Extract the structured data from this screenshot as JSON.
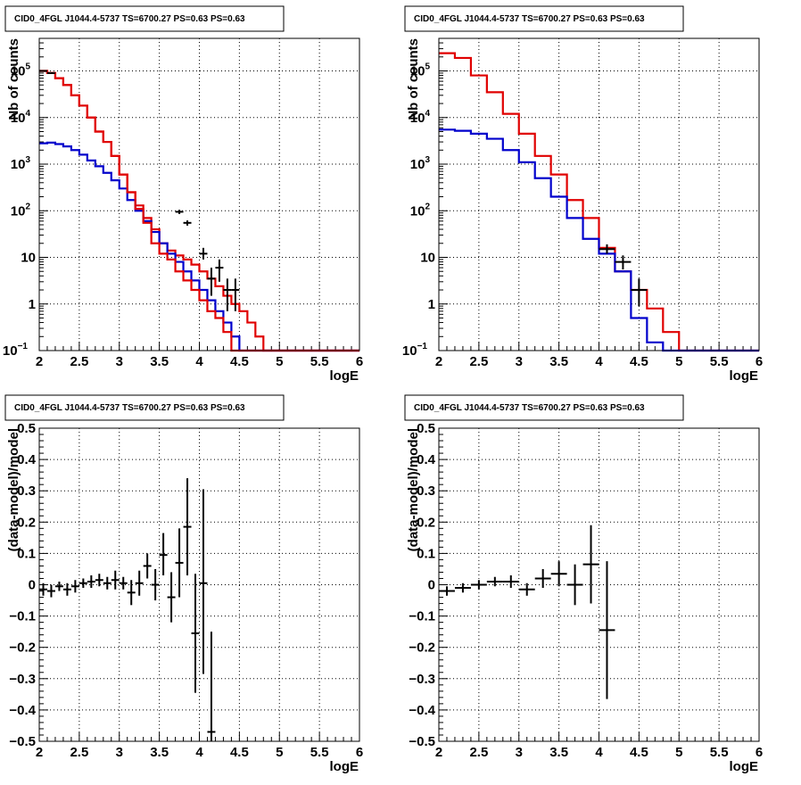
{
  "chart_data": [
    {
      "id": "p1",
      "type": "line",
      "title": "CID0_4FGL J1044.4-5737 TS=6700.27 PS=0.63 PS=0.63",
      "xlabel": "logE",
      "ylabel": "Nb of counts",
      "xlim": [
        2,
        6
      ],
      "ylim": [
        0.1,
        500000
      ],
      "yscale": "log",
      "grid": true,
      "xticks": [
        "2",
        "2.5",
        "3",
        "3.5",
        "4",
        "4.5",
        "5",
        "5.5",
        "6"
      ],
      "yticks": [
        {
          "v": 0.1,
          "l": "10",
          "sup": "−1"
        },
        {
          "v": 1,
          "l": "1"
        },
        {
          "v": 10,
          "l": "10"
        },
        {
          "v": 100,
          "l": "10",
          "sup": "2"
        },
        {
          "v": 1000,
          "l": "10",
          "sup": "3"
        },
        {
          "v": 10000,
          "l": "10",
          "sup": "4"
        },
        {
          "v": 100000,
          "l": "10",
          "sup": "5"
        }
      ],
      "series": [
        {
          "color": "#e00000",
          "edges": [
            2.0,
            2.1,
            2.2,
            2.3,
            2.4,
            2.5,
            2.6,
            2.7,
            2.8,
            2.9,
            3.0,
            3.1,
            3.2,
            3.3,
            3.4,
            3.5,
            3.6,
            3.7,
            3.8,
            3.9,
            4.0,
            4.1,
            4.2,
            4.3,
            4.4,
            4.5,
            4.6,
            4.7,
            4.8,
            4.9,
            5.0,
            6.0
          ],
          "values": [
            100000,
            90000,
            70000,
            50000,
            30000,
            18000,
            10000,
            5000,
            3000,
            1500,
            600,
            250,
            130,
            70,
            40,
            20,
            14,
            11,
            9,
            7,
            5,
            3.5,
            2.4,
            1.5,
            1.0,
            0.7,
            0.4,
            0.2,
            0.1,
            0.1,
            0.1
          ]
        },
        {
          "color": "#0000cc",
          "edges": [
            2.0,
            2.1,
            2.2,
            2.3,
            2.4,
            2.5,
            2.6,
            2.7,
            2.8,
            2.9,
            3.0,
            3.1,
            3.2,
            3.3,
            3.4,
            3.5,
            3.6,
            3.7,
            3.8,
            3.9,
            4.0,
            4.1,
            4.2,
            4.3,
            4.4,
            4.5,
            4.6,
            4.7,
            4.8,
            4.9,
            5.0,
            6.0
          ],
          "values": [
            2800,
            2900,
            2700,
            2400,
            2000,
            1600,
            1200,
            900,
            650,
            450,
            300,
            170,
            100,
            60,
            35,
            20,
            12,
            8,
            5,
            3.2,
            2.0,
            1.2,
            0.7,
            0.4,
            0.2,
            0.1,
            0.1,
            0.1,
            0.1,
            0.1,
            0.1
          ]
        },
        {
          "color": "#e00000",
          "edges": [
            2.0,
            2.1,
            2.2,
            2.3,
            2.4,
            2.5,
            2.6,
            2.7,
            2.8,
            2.9,
            3.0,
            3.1,
            3.2,
            3.3,
            3.4,
            3.5,
            3.6,
            3.7,
            3.8,
            3.9,
            4.0,
            4.1,
            4.2,
            4.3,
            4.4,
            4.5,
            4.6,
            4.7,
            4.8,
            4.9,
            5.0,
            6.0
          ],
          "values": [
            100000,
            90000,
            70000,
            50000,
            30000,
            18000,
            10000,
            5000,
            3000,
            1500,
            600,
            250,
            110,
            55,
            20,
            12,
            9,
            5,
            3.2,
            2.0,
            1.2,
            0.7,
            0.5,
            0.25,
            0.1,
            0.1,
            0.1,
            0.1,
            0.1,
            0.1,
            0.1
          ]
        }
      ],
      "points": [
        {
          "x": 2.05,
          "y": 100000,
          "xe": 0.05,
          "lo": 99000,
          "hi": 101000
        },
        {
          "x": 2.15,
          "y": 90000,
          "xe": 0.05,
          "lo": 89000,
          "hi": 91000
        },
        {
          "x": 3.85,
          "y": 55,
          "xe": 0.05,
          "lo": 48,
          "hi": 62
        },
        {
          "x": 3.75,
          "y": 95,
          "xe": 0.05,
          "lo": 85,
          "hi": 105
        },
        {
          "x": 4.05,
          "y": 12,
          "xe": 0.05,
          "lo": 9,
          "hi": 16
        },
        {
          "x": 4.15,
          "y": 3.5,
          "xe": 0.05,
          "lo": 1.5,
          "hi": 6
        },
        {
          "x": 4.25,
          "y": 6,
          "xe": 0.05,
          "lo": 3,
          "hi": 9
        },
        {
          "x": 4.35,
          "y": 2,
          "xe": 0.05,
          "lo": 0.7,
          "hi": 3.5
        },
        {
          "x": 4.45,
          "y": 2,
          "xe": 0.05,
          "lo": 0.7,
          "hi": 3.5
        }
      ]
    },
    {
      "id": "p2",
      "type": "line",
      "title": "CID0_4FGL J1044.4-5737 TS=6700.27 PS=0.63 PS=0.63",
      "xlabel": "logE",
      "ylabel": "Nb of counts",
      "xlim": [
        2,
        6
      ],
      "ylim": [
        0.1,
        500000
      ],
      "yscale": "log",
      "grid": true,
      "xticks": [
        "2",
        "2.5",
        "3",
        "3.5",
        "4",
        "4.5",
        "5",
        "5.5",
        "6"
      ],
      "yticks": [
        {
          "v": 0.1,
          "l": "10",
          "sup": "−1"
        },
        {
          "v": 1,
          "l": "1"
        },
        {
          "v": 10,
          "l": "10"
        },
        {
          "v": 100,
          "l": "10",
          "sup": "2"
        },
        {
          "v": 1000,
          "l": "10",
          "sup": "3"
        },
        {
          "v": 10000,
          "l": "10",
          "sup": "4"
        },
        {
          "v": 100000,
          "l": "10",
          "sup": "5"
        }
      ],
      "series": [
        {
          "color": "#e00000",
          "edges": [
            2.0,
            2.2,
            2.4,
            2.6,
            2.8,
            3.0,
            3.2,
            3.4,
            3.6,
            3.8,
            4.0,
            4.2,
            4.4,
            4.6,
            4.8,
            5.0,
            6.0
          ],
          "values": [
            240000,
            190000,
            80000,
            35000,
            12000,
            4500,
            1500,
            600,
            170,
            70,
            16,
            5,
            2,
            0.8,
            0.25,
            0.1
          ]
        },
        {
          "color": "#0000cc",
          "edges": [
            2.0,
            2.2,
            2.4,
            2.6,
            2.8,
            3.0,
            3.2,
            3.4,
            3.6,
            3.8,
            4.0,
            4.2,
            4.4,
            4.6,
            4.8,
            5.0,
            6.0
          ],
          "values": [
            5500,
            5200,
            4500,
            3500,
            2000,
            1100,
            500,
            200,
            70,
            25,
            12,
            5,
            0.5,
            0.15,
            0.1,
            0.1
          ]
        }
      ],
      "points": [
        {
          "x": 4.1,
          "y": 15,
          "xe": 0.1,
          "lo": 12,
          "hi": 19
        },
        {
          "x": 4.3,
          "y": 8,
          "xe": 0.1,
          "lo": 5.5,
          "hi": 11
        },
        {
          "x": 4.5,
          "y": 2,
          "xe": 0.1,
          "lo": 0.9,
          "hi": 3.5
        }
      ]
    },
    {
      "id": "p3",
      "type": "scatter",
      "title": "CID0_4FGL J1044.4-5737 TS=6700.27 PS=0.63 PS=0.63",
      "xlabel": "logE",
      "ylabel": "(data-model)/model",
      "xlim": [
        2,
        6
      ],
      "ylim": [
        -0.5,
        0.5
      ],
      "yscale": "linear",
      "grid": true,
      "xticks": [
        "2",
        "2.5",
        "3",
        "3.5",
        "4",
        "4.5",
        "5",
        "5.5",
        "6"
      ],
      "yticks": [
        {
          "v": -0.5,
          "l": "−0.5"
        },
        {
          "v": -0.4,
          "l": "−0.4"
        },
        {
          "v": -0.3,
          "l": "−0.3"
        },
        {
          "v": -0.2,
          "l": "−0.2"
        },
        {
          "v": -0.1,
          "l": "−0.1"
        },
        {
          "v": 0,
          "l": "0"
        },
        {
          "v": 0.1,
          "l": "0.1"
        },
        {
          "v": 0.2,
          "l": "0.2"
        },
        {
          "v": 0.3,
          "l": "0.3"
        },
        {
          "v": 0.4,
          "l": "0.4"
        },
        {
          "v": 0.5,
          "l": "0.5"
        }
      ],
      "series": [],
      "points": [
        {
          "x": 2.05,
          "y": -0.015,
          "xe": 0.05,
          "lo": -0.035,
          "hi": 0.005
        },
        {
          "x": 2.15,
          "y": -0.02,
          "xe": 0.05,
          "lo": -0.04,
          "hi": 0.0
        },
        {
          "x": 2.25,
          "y": -0.005,
          "xe": 0.05,
          "lo": -0.02,
          "hi": 0.01
        },
        {
          "x": 2.35,
          "y": -0.015,
          "xe": 0.05,
          "lo": -0.035,
          "hi": 0.005
        },
        {
          "x": 2.45,
          "y": -0.005,
          "xe": 0.05,
          "lo": -0.025,
          "hi": 0.015
        },
        {
          "x": 2.55,
          "y": 0.005,
          "xe": 0.05,
          "lo": -0.01,
          "hi": 0.02
        },
        {
          "x": 2.65,
          "y": 0.01,
          "xe": 0.05,
          "lo": -0.01,
          "hi": 0.03
        },
        {
          "x": 2.75,
          "y": 0.015,
          "xe": 0.05,
          "lo": -0.005,
          "hi": 0.035
        },
        {
          "x": 2.85,
          "y": 0.005,
          "xe": 0.05,
          "lo": -0.015,
          "hi": 0.025
        },
        {
          "x": 2.95,
          "y": 0.015,
          "xe": 0.05,
          "lo": -0.015,
          "hi": 0.045
        },
        {
          "x": 3.05,
          "y": 0.005,
          "xe": 0.05,
          "lo": -0.015,
          "hi": 0.025
        },
        {
          "x": 3.15,
          "y": -0.025,
          "xe": 0.05,
          "lo": -0.065,
          "hi": 0.015
        },
        {
          "x": 3.25,
          "y": 0.005,
          "xe": 0.05,
          "lo": -0.035,
          "hi": 0.045
        },
        {
          "x": 3.35,
          "y": 0.06,
          "xe": 0.05,
          "lo": 0.02,
          "hi": 0.1
        },
        {
          "x": 3.45,
          "y": 0.0,
          "xe": 0.05,
          "lo": -0.05,
          "hi": 0.05
        },
        {
          "x": 3.55,
          "y": 0.095,
          "xe": 0.05,
          "lo": 0.03,
          "hi": 0.165
        },
        {
          "x": 3.65,
          "y": -0.04,
          "xe": 0.05,
          "lo": -0.12,
          "hi": 0.04
        },
        {
          "x": 3.75,
          "y": 0.07,
          "xe": 0.05,
          "lo": -0.04,
          "hi": 0.18
        },
        {
          "x": 3.85,
          "y": 0.185,
          "xe": 0.05,
          "lo": 0.03,
          "hi": 0.34
        },
        {
          "x": 3.95,
          "y": -0.155,
          "xe": 0.05,
          "lo": -0.345,
          "hi": 0.035
        },
        {
          "x": 4.05,
          "y": 0.005,
          "xe": 0.05,
          "lo": -0.285,
          "hi": 0.305
        },
        {
          "x": 4.15,
          "y": -0.47,
          "xe": 0.05,
          "lo": -0.5,
          "hi": -0.15
        }
      ]
    },
    {
      "id": "p4",
      "type": "scatter",
      "title": "CID0_4FGL J1044.4-5737 TS=6700.27 PS=0.63 PS=0.63",
      "xlabel": "logE",
      "ylabel": "(data-model)/model",
      "xlim": [
        2,
        6
      ],
      "ylim": [
        -0.5,
        0.5
      ],
      "yscale": "linear",
      "grid": true,
      "xticks": [
        "2",
        "2.5",
        "3",
        "3.5",
        "4",
        "4.5",
        "5",
        "5.5",
        "6"
      ],
      "yticks": [
        {
          "v": -0.5,
          "l": "−0.5"
        },
        {
          "v": -0.4,
          "l": "−0.4"
        },
        {
          "v": -0.3,
          "l": "−0.3"
        },
        {
          "v": -0.2,
          "l": "−0.2"
        },
        {
          "v": -0.1,
          "l": "−0.1"
        },
        {
          "v": 0,
          "l": "0"
        },
        {
          "v": 0.1,
          "l": "0.1"
        },
        {
          "v": 0.2,
          "l": "0.2"
        },
        {
          "v": 0.3,
          "l": "0.3"
        },
        {
          "v": 0.4,
          "l": "0.4"
        },
        {
          "v": 0.5,
          "l": "0.5"
        }
      ],
      "series": [],
      "points": [
        {
          "x": 2.1,
          "y": -0.02,
          "xe": 0.1,
          "lo": -0.035,
          "hi": -0.005
        },
        {
          "x": 2.3,
          "y": -0.01,
          "xe": 0.1,
          "lo": -0.025,
          "hi": 0.005
        },
        {
          "x": 2.5,
          "y": 0.0,
          "xe": 0.1,
          "lo": -0.015,
          "hi": 0.015
        },
        {
          "x": 2.7,
          "y": 0.01,
          "xe": 0.1,
          "lo": -0.005,
          "hi": 0.025
        },
        {
          "x": 2.9,
          "y": 0.01,
          "xe": 0.1,
          "lo": -0.01,
          "hi": 0.03
        },
        {
          "x": 3.1,
          "y": -0.015,
          "xe": 0.1,
          "lo": -0.035,
          "hi": 0.005
        },
        {
          "x": 3.3,
          "y": 0.02,
          "xe": 0.1,
          "lo": -0.01,
          "hi": 0.05
        },
        {
          "x": 3.5,
          "y": 0.035,
          "xe": 0.1,
          "lo": -0.005,
          "hi": 0.075
        },
        {
          "x": 3.7,
          "y": 0.0,
          "xe": 0.1,
          "lo": -0.065,
          "hi": 0.065
        },
        {
          "x": 3.9,
          "y": 0.065,
          "xe": 0.1,
          "lo": -0.06,
          "hi": 0.19
        },
        {
          "x": 4.1,
          "y": -0.145,
          "xe": 0.1,
          "lo": -0.365,
          "hi": 0.075
        }
      ]
    }
  ]
}
